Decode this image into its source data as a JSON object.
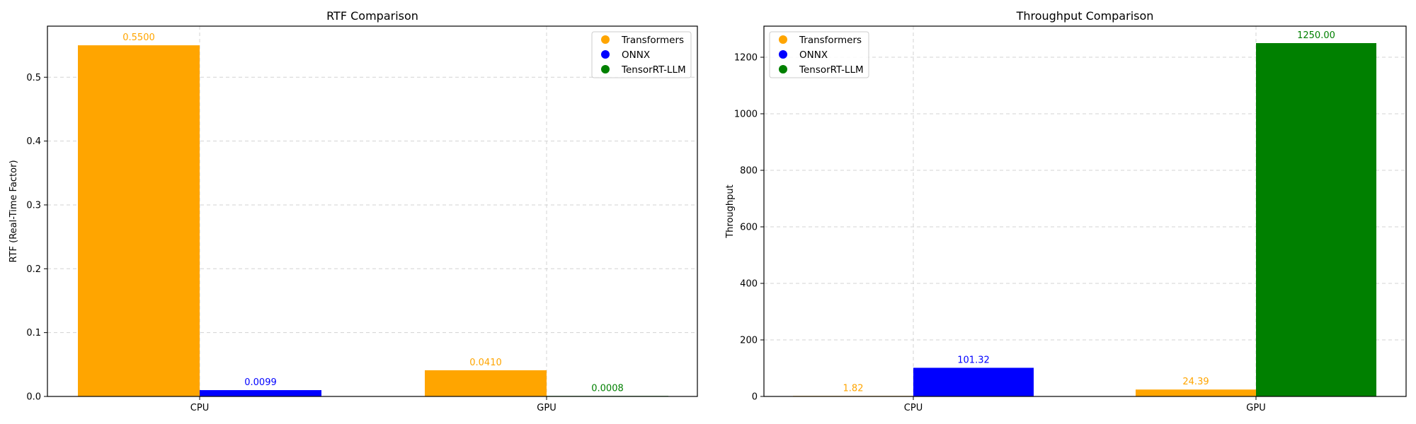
{
  "chart_data": [
    {
      "type": "bar",
      "title": "RTF Comparison",
      "xlabel": "",
      "ylabel": "RTF (Real-Time Factor)",
      "categories": [
        "CPU",
        "GPU"
      ],
      "ylim": [
        0,
        0.58
      ],
      "yticks": [
        0.0,
        0.1,
        0.2,
        0.3,
        0.4,
        0.5
      ],
      "ytick_labels": [
        "0.0",
        "0.1",
        "0.2",
        "0.3",
        "0.4",
        "0.5"
      ],
      "grid": true,
      "legend_position": "top-right",
      "series": [
        {
          "name": "Transformers",
          "color": "#FFA500",
          "values": [
            0.55,
            0.041
          ],
          "labels": [
            "0.5500",
            "0.0410"
          ]
        },
        {
          "name": "ONNX",
          "color": "#0000FF",
          "values": [
            0.0099,
            null
          ],
          "labels": [
            "0.0099",
            null
          ]
        },
        {
          "name": "TensorRT-LLM",
          "color": "#008000",
          "values": [
            null,
            0.0008
          ],
          "labels": [
            null,
            "0.0008"
          ]
        }
      ]
    },
    {
      "type": "bar",
      "title": "Throughput Comparison",
      "xlabel": "",
      "ylabel": "Throughput",
      "categories": [
        "CPU",
        "GPU"
      ],
      "ylim": [
        0,
        1310
      ],
      "yticks": [
        0,
        200,
        400,
        600,
        800,
        1000,
        1200
      ],
      "ytick_labels": [
        "0",
        "200",
        "400",
        "600",
        "800",
        "1000",
        "1200"
      ],
      "grid": true,
      "legend_position": "top-left",
      "series": [
        {
          "name": "Transformers",
          "color": "#FFA500",
          "values": [
            1.82,
            24.39
          ],
          "labels": [
            "1.82",
            "24.39"
          ]
        },
        {
          "name": "ONNX",
          "color": "#0000FF",
          "values": [
            101.32,
            null
          ],
          "labels": [
            "101.32",
            null
          ]
        },
        {
          "name": "TensorRT-LLM",
          "color": "#008000",
          "values": [
            null,
            1250.0
          ],
          "labels": [
            null,
            "1250.00"
          ]
        }
      ]
    }
  ]
}
